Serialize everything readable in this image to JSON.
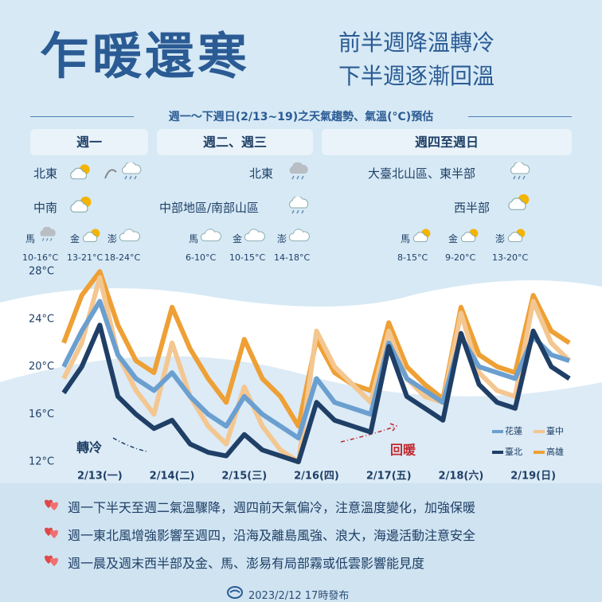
{
  "header": {
    "title": "乍暖還寒",
    "subtitle": [
      "前半週降溫轉冷",
      "下半週逐漸回溫"
    ]
  },
  "banner": "週一～下週日(2/13~19)之天氣趨勢、氣溫(°C)預估",
  "periods": [
    {
      "label": "週一",
      "regions": [
        "北東",
        "中南"
      ],
      "islands": [
        {
          "name": "馬",
          "temp": "10-16°C"
        },
        {
          "name": "金",
          "temp": "13-21°C"
        },
        {
          "name": "澎",
          "temp": "18-24°C"
        }
      ]
    },
    {
      "label": "週二、週三",
      "regions": [
        "北東",
        "中部地區/南部山區"
      ],
      "islands": [
        {
          "name": "馬",
          "temp": "6-10°C"
        },
        {
          "name": "金",
          "temp": "10-15°C"
        },
        {
          "name": "澎",
          "temp": "14-18°C"
        }
      ]
    },
    {
      "label": "週四至週日",
      "regions": [
        "大臺北山區、東半部",
        "西半部"
      ],
      "islands": [
        {
          "name": "馬",
          "temp": "8-15°C"
        },
        {
          "name": "金",
          "temp": "9-20°C"
        },
        {
          "name": "澎",
          "temp": "13-20°C"
        }
      ]
    }
  ],
  "chart_data": {
    "type": "line",
    "x": [
      0,
      1,
      2,
      3,
      4,
      5,
      6,
      7,
      8,
      9,
      10,
      11,
      12,
      13,
      14,
      15,
      16,
      17,
      18,
      19,
      20,
      21,
      22,
      23,
      24,
      25,
      26,
      27,
      28
    ],
    "xlim": [
      0,
      28
    ],
    "xticks": [
      {
        "value": 2,
        "label": "2/13(一)"
      },
      {
        "value": 6,
        "label": "2/14(二)"
      },
      {
        "value": 10,
        "label": "2/15(三)"
      },
      {
        "value": 14,
        "label": "2/16(四)"
      },
      {
        "value": 18,
        "label": "2/17(五)"
      },
      {
        "value": 22,
        "label": "2/18(六)"
      },
      {
        "value": 26,
        "label": "2/19(日)"
      }
    ],
    "ylim": [
      12,
      28
    ],
    "yticks": [
      {
        "value": 12,
        "label": "12°C"
      },
      {
        "value": 16,
        "label": "16°C"
      },
      {
        "value": 20,
        "label": "20°C"
      },
      {
        "value": 24,
        "label": "24°C"
      },
      {
        "value": 28,
        "label": "28°C"
      }
    ],
    "series": [
      {
        "name": "花蓮",
        "color": "#6a9fd0",
        "values": [
          20,
          23,
          25.5,
          21,
          19,
          18,
          19.5,
          17.5,
          16,
          15,
          17.5,
          16,
          15,
          14,
          19,
          17,
          16.5,
          16,
          22,
          19,
          18,
          17,
          22.5,
          20,
          19.5,
          19,
          22.5,
          21,
          20.5
        ]
      },
      {
        "name": "臺中",
        "color": "#f4c690",
        "values": [
          19,
          22,
          27.5,
          21,
          18,
          16,
          22,
          17.5,
          15,
          13.5,
          18.3,
          15,
          13,
          12,
          23,
          20,
          18.5,
          17,
          23,
          19,
          17.5,
          17,
          24.5,
          19.5,
          18,
          17.5,
          25.5,
          22,
          20.5
        ]
      },
      {
        "name": "臺北",
        "color": "#1f3f66",
        "values": [
          17.8,
          20,
          23.5,
          17.5,
          16,
          14.8,
          15.5,
          13.5,
          12.8,
          12.5,
          14.3,
          13,
          12.5,
          12,
          17,
          15.5,
          15,
          14.5,
          21.7,
          17.5,
          16.5,
          15.5,
          22.8,
          18.5,
          17,
          16.5,
          23,
          20,
          19
        ]
      },
      {
        "name": "高雄",
        "color": "#eea035",
        "values": [
          22,
          26,
          28,
          23.5,
          20.5,
          19.5,
          25,
          21.5,
          19,
          17,
          22.3,
          19,
          17.5,
          15,
          22.3,
          19.5,
          18.5,
          18,
          23.7,
          20,
          18.5,
          17.3,
          25,
          21,
          20,
          19.5,
          26,
          23,
          22
        ]
      }
    ],
    "annotations": [
      "轉冷",
      "回暖"
    ]
  },
  "notes": [
    "週一下半天至週二氣溫驟降，週四前天氣偏冷，注意溫度變化，加強保暖",
    "週一東北風增強影響至週四，沿海及離島風強、浪大，海邊活動注意安全",
    "週一晨及週末西半部及金、馬、澎易有局部霧或低雲影響能見度"
  ],
  "footer": "2023/2/12 17時發布"
}
